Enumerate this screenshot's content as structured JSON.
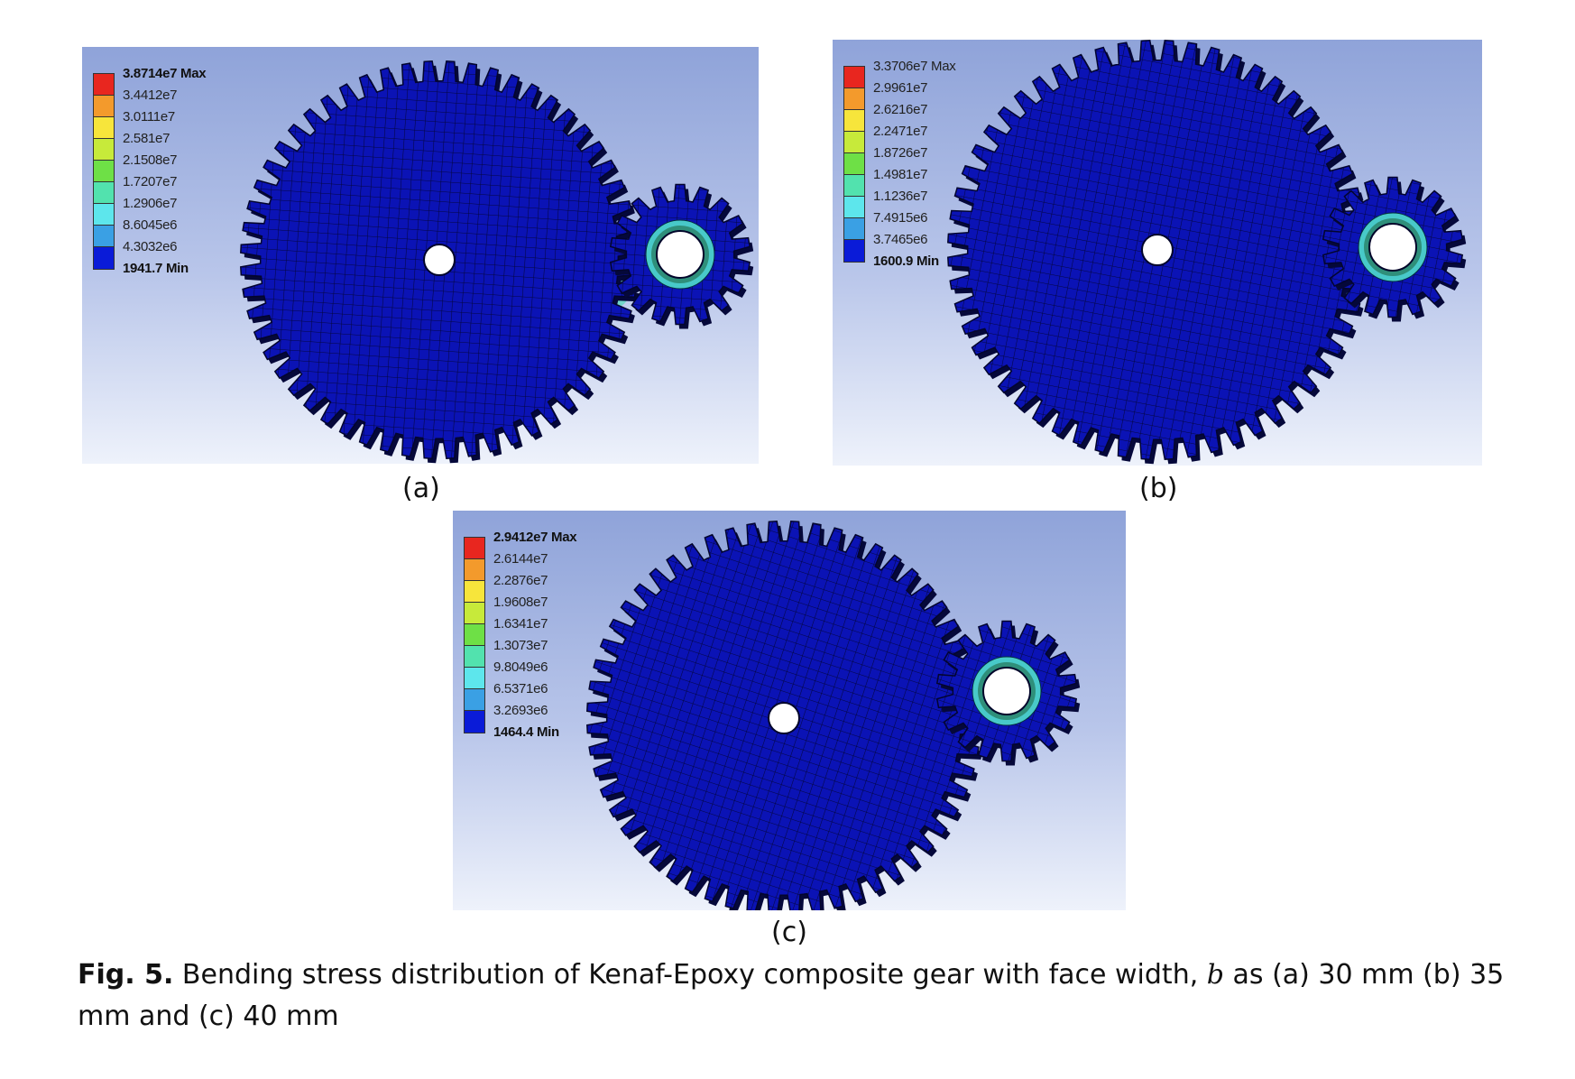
{
  "panels": [
    {
      "label": "(a)",
      "legend": [
        "3.8714e7 Max",
        "3.4412e7",
        "3.0111e7",
        "2.581e7",
        "2.1508e7",
        "1.7207e7",
        "1.2906e7",
        "8.6045e6",
        "4.3032e6",
        "1941.7 Min"
      ]
    },
    {
      "label": "(b)",
      "legend": [
        "3.3706e7 Max",
        "2.9961e7",
        "2.6216e7",
        "2.2471e7",
        "1.8726e7",
        "1.4981e7",
        "1.1236e7",
        "7.4915e6",
        "3.7465e6",
        "1600.9 Min"
      ]
    },
    {
      "label": "(c)",
      "legend": [
        "2.9412e7 Max",
        "2.6144e7",
        "2.2876e7",
        "1.9608e7",
        "1.6341e7",
        "1.3073e7",
        "9.8049e6",
        "6.5371e6",
        "3.2693e6",
        "1464.4 Min"
      ]
    }
  ],
  "legend_colors": [
    "#e8261f",
    "#f39a2c",
    "#f7e53b",
    "#c7ea3a",
    "#6ee046",
    "#52e2ae",
    "#5de6ec",
    "#3aa0e4",
    "#0a1bd8"
  ],
  "gear_color": "#0b13b5",
  "caption": {
    "fig": "Fig. 5.",
    "text1": " Bending stress distribution of Kenaf-Epoxy composite gear with face width, ",
    "var": "b",
    "text2": " as (a) 30 mm (b) 35 mm and (c) 40 mm"
  }
}
